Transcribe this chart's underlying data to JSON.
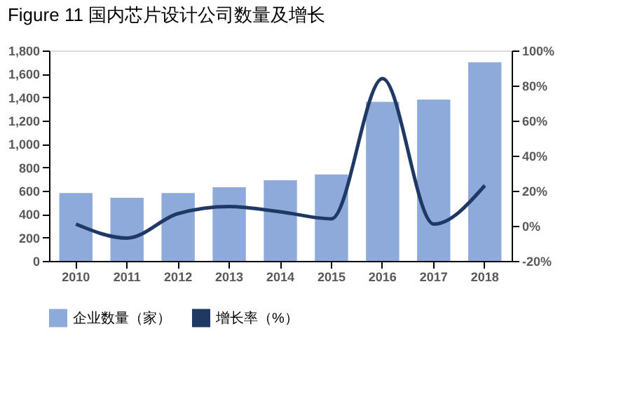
{
  "chart_data": {
    "type": "bar",
    "title": "Figure 11  国内芯片设计公司数量及增长",
    "categories": [
      "2010",
      "2011",
      "2012",
      "2013",
      "2014",
      "2015",
      "2016",
      "2017",
      "2018"
    ],
    "series": [
      {
        "name": "企业数量（家）",
        "color": "#8eaadb",
        "values": [
          580,
          540,
          580,
          630,
          690,
          740,
          1360,
          1380,
          1700
        ]
      },
      {
        "name": "增长率（%）",
        "type": "line",
        "axis": "y2",
        "color": "#1f3864",
        "values": [
          1,
          -7,
          7,
          11,
          8,
          4,
          84,
          1,
          23
        ]
      }
    ],
    "ylim": [
      0,
      1800
    ],
    "yticks": [
      0,
      200,
      400,
      600,
      800,
      {
        "value": 1000,
        "label": "1,000"
      },
      {
        "value": 1200,
        "label": "1,200"
      },
      {
        "value": 1400,
        "label": "1,400"
      },
      {
        "value": 1600,
        "label": "1,600"
      },
      {
        "value": 1800,
        "label": "1,800"
      }
    ],
    "y2lim": [
      -20,
      100
    ],
    "y2ticks": [
      {
        "value": -20,
        "label": "-20%"
      },
      {
        "value": 0,
        "label": "0%"
      },
      {
        "value": 20,
        "label": "20%"
      },
      {
        "value": 40,
        "label": "40%"
      },
      {
        "value": 60,
        "label": "60%"
      },
      {
        "value": 80,
        "label": "80%"
      },
      {
        "value": 100,
        "label": "100%"
      }
    ],
    "grid": false,
    "legend": "bottom"
  }
}
